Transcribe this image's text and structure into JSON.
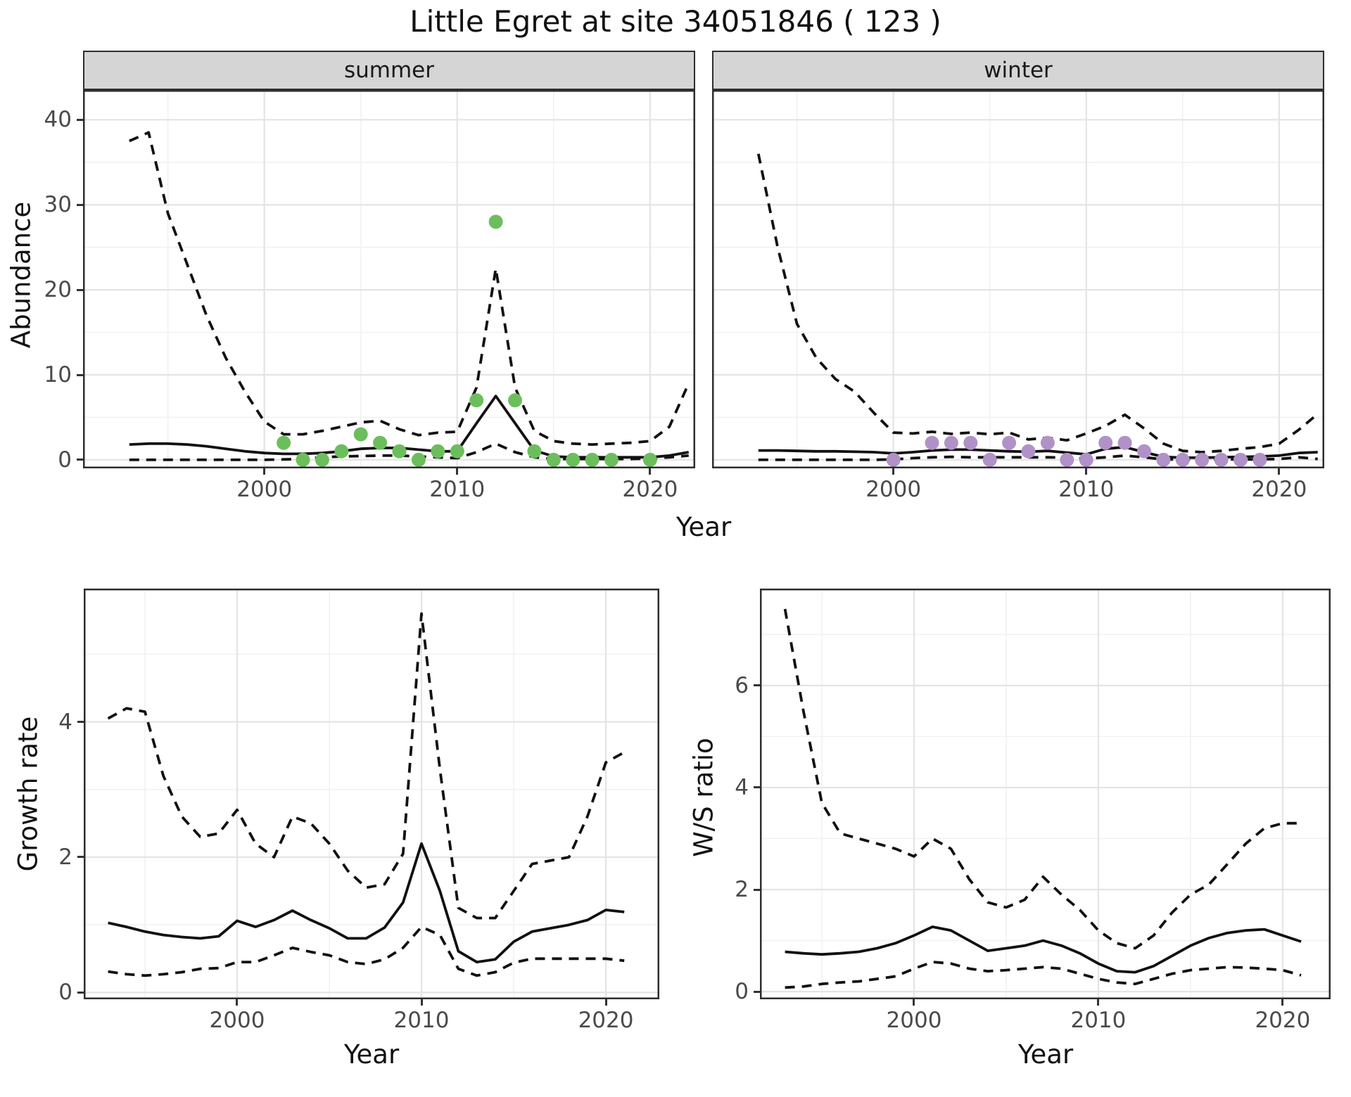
{
  "title": "Little Egret at site 34051846 ( 123 )",
  "axes": {
    "abundance_ylabel": "Abundance",
    "growth_ylabel": "Growth rate",
    "ws_ylabel": "W/S ratio",
    "year_xlabel": "Year"
  },
  "facets": {
    "summer": "summer",
    "winter": "winter"
  },
  "colors": {
    "summer_points": "#6CBE5C",
    "winter_points": "#B192C8",
    "line": "#111111",
    "strip_bg": "#D5D5D5",
    "grid_major": "#E4E4E4",
    "grid_minor": "#F1F1F1",
    "panel_border": "#2E2E2E",
    "tick_text": "#4A4A4A"
  },
  "chart_data": [
    {
      "id": "abundance-summer",
      "type": "line",
      "title": "summer",
      "xlabel": "Year",
      "ylabel": "Abundance",
      "x_range": [
        1990.6,
        2022.34
      ],
      "y_range": [
        -1.0,
        43.5
      ],
      "x_ticks": [
        2000,
        2010,
        2020
      ],
      "x_minor": [
        1995,
        2005,
        2015
      ],
      "y_ticks": [
        0,
        10,
        20,
        30,
        40
      ],
      "y_minor": [
        5,
        15,
        25,
        35
      ],
      "show_y_labels": true,
      "years": [
        1993,
        1994,
        1995,
        1996,
        1997,
        1998,
        1999,
        2000,
        2001,
        2002,
        2003,
        2004,
        2005,
        2006,
        2007,
        2008,
        2009,
        2010,
        2011,
        2012,
        2013,
        2014,
        2015,
        2016,
        2017,
        2018,
        2019,
        2020,
        2021,
        2022
      ],
      "series": [
        {
          "name": "upper-ci",
          "style": "dashed",
          "values": [
            37.5,
            38.5,
            29,
            23,
            17,
            12,
            8,
            4.5,
            3,
            3,
            3.4,
            3.9,
            4.4,
            4.6,
            3.6,
            2.9,
            3.2,
            3.3,
            8.5,
            22.5,
            8.5,
            3.4,
            2.2,
            1.9,
            1.8,
            1.9,
            2,
            2.2,
            3.9,
            9
          ]
        },
        {
          "name": "fit",
          "style": "solid",
          "values": [
            1.8,
            1.9,
            1.9,
            1.8,
            1.6,
            1.3,
            1.0,
            0.8,
            0.7,
            0.7,
            0.8,
            1.0,
            1.3,
            1.4,
            1.4,
            1.2,
            1.0,
            1.0,
            4.3,
            7.5,
            4.3,
            1.1,
            0.4,
            0.3,
            0.3,
            0.3,
            0.3,
            0.3,
            0.5,
            0.9
          ]
        },
        {
          "name": "lower-ci",
          "style": "dashed",
          "values": [
            0,
            0,
            0,
            0,
            0,
            0,
            0,
            0,
            0.05,
            0.1,
            0.3,
            0.4,
            0.45,
            0.5,
            0.5,
            0.4,
            0.3,
            0.2,
            0.9,
            1.9,
            0.9,
            0.3,
            0.1,
            0.1,
            0.1,
            0.1,
            0.1,
            0.15,
            0.3,
            0.5
          ]
        }
      ],
      "points": {
        "name": "summer-counts",
        "color": "#6CBE5C",
        "years": [
          2001,
          2002,
          2003,
          2004,
          2005,
          2006,
          2007,
          2008,
          2009,
          2010,
          2011,
          2012,
          2013,
          2014,
          2015,
          2016,
          2017,
          2018,
          2020
        ],
        "values": [
          2,
          0,
          0,
          1,
          3,
          2,
          1,
          0,
          1,
          1,
          7,
          28,
          7,
          1,
          0,
          0,
          0,
          0,
          0
        ]
      }
    },
    {
      "id": "abundance-winter",
      "type": "line",
      "title": "winter",
      "xlabel": "Year",
      "ylabel": "Abundance",
      "x_range": [
        1990.6,
        2022.34
      ],
      "y_range": [
        -1.0,
        43.5
      ],
      "x_ticks": [
        2000,
        2010,
        2020
      ],
      "x_minor": [
        1995,
        2005,
        2015
      ],
      "y_ticks": [
        0,
        10,
        20,
        30,
        40
      ],
      "y_minor": [
        5,
        15,
        25,
        35
      ],
      "show_y_labels": false,
      "years": [
        1993,
        1994,
        1995,
        1996,
        1997,
        1998,
        1999,
        2000,
        2001,
        2002,
        2003,
        2004,
        2005,
        2006,
        2007,
        2008,
        2009,
        2010,
        2011,
        2012,
        2013,
        2014,
        2015,
        2016,
        2017,
        2018,
        2019,
        2020,
        2021,
        2022
      ],
      "series": [
        {
          "name": "upper-ci",
          "style": "dashed",
          "values": [
            36,
            25,
            16,
            12,
            9.5,
            8,
            5.5,
            3.2,
            3.1,
            3.3,
            3.05,
            3.2,
            3.0,
            3.2,
            2.4,
            2.6,
            2.3,
            3.1,
            4.0,
            5.3,
            3.7,
            1.9,
            1.05,
            0.9,
            1.05,
            1.3,
            1.5,
            1.9,
            3.5,
            5.4
          ]
        },
        {
          "name": "fit",
          "style": "solid",
          "values": [
            1.1,
            1.1,
            1.05,
            1.0,
            1.0,
            0.95,
            0.9,
            0.75,
            0.9,
            1.1,
            1.2,
            1.2,
            1.1,
            1.0,
            0.95,
            1.05,
            0.85,
            0.65,
            1.3,
            1.5,
            0.9,
            0.35,
            0.25,
            0.25,
            0.3,
            0.35,
            0.4,
            0.5,
            0.8,
            0.9
          ]
        },
        {
          "name": "lower-ci",
          "style": "dashed",
          "values": [
            0,
            0,
            0,
            0,
            0,
            0,
            0,
            0.05,
            0.2,
            0.3,
            0.35,
            0.3,
            0.3,
            0.3,
            0.3,
            0.3,
            0.25,
            0.15,
            0.3,
            0.5,
            0.3,
            0.05,
            0.05,
            0.05,
            0.05,
            0.05,
            0.05,
            0.1,
            0.3,
            0.1
          ]
        }
      ],
      "points": {
        "name": "winter-counts",
        "color": "#B192C8",
        "years": [
          2000,
          2002,
          2003,
          2004,
          2005,
          2006,
          2007,
          2008,
          2009,
          2010,
          2011,
          2012,
          2013,
          2014,
          2015,
          2016,
          2017,
          2018,
          2019
        ],
        "values": [
          0,
          2,
          2,
          2,
          0,
          2,
          1,
          2,
          0,
          0,
          2,
          2,
          1,
          0,
          0,
          0,
          0,
          0,
          0
        ]
      }
    },
    {
      "id": "growth-rate",
      "type": "line",
      "title": "",
      "xlabel": "Year",
      "ylabel": "Growth rate",
      "x_range": [
        1991.68,
        2022.9
      ],
      "y_range": [
        -0.1,
        5.97
      ],
      "x_ticks": [
        2000,
        2010,
        2020
      ],
      "x_minor": [
        1995,
        2005,
        2015
      ],
      "y_ticks": [
        0,
        2,
        4
      ],
      "y_minor": [
        1,
        3,
        5
      ],
      "show_y_labels": true,
      "years": [
        1993,
        1994,
        1995,
        1996,
        1997,
        1998,
        1999,
        2000,
        2001,
        2002,
        2003,
        2004,
        2005,
        2006,
        2007,
        2008,
        2009,
        2010,
        2011,
        2012,
        2013,
        2014,
        2015,
        2016,
        2017,
        2018,
        2019,
        2020,
        2021
      ],
      "series": [
        {
          "name": "upper-ci",
          "style": "dashed",
          "values": [
            4.05,
            4.2,
            4.15,
            3.2,
            2.6,
            2.3,
            2.35,
            2.7,
            2.2,
            2.0,
            2.6,
            2.5,
            2.2,
            1.8,
            1.55,
            1.6,
            2.05,
            5.6,
            3.3,
            1.25,
            1.1,
            1.1,
            1.5,
            1.9,
            1.95,
            2.0,
            2.6,
            3.4,
            3.55
          ]
        },
        {
          "name": "fit",
          "style": "solid",
          "values": [
            1.03,
            0.97,
            0.9,
            0.85,
            0.82,
            0.8,
            0.83,
            1.06,
            0.97,
            1.07,
            1.21,
            1.07,
            0.95,
            0.8,
            0.8,
            0.96,
            1.33,
            2.2,
            1.5,
            0.61,
            0.45,
            0.49,
            0.75,
            0.9,
            0.95,
            1.0,
            1.07,
            1.22,
            1.19
          ]
        },
        {
          "name": "lower-ci",
          "style": "dashed",
          "values": [
            0.31,
            0.27,
            0.25,
            0.27,
            0.3,
            0.35,
            0.36,
            0.45,
            0.45,
            0.55,
            0.66,
            0.6,
            0.55,
            0.45,
            0.42,
            0.49,
            0.66,
            0.97,
            0.85,
            0.35,
            0.25,
            0.3,
            0.44,
            0.5,
            0.5,
            0.5,
            0.5,
            0.5,
            0.47
          ]
        }
      ],
      "points": null
    },
    {
      "id": "ws-ratio",
      "type": "line",
      "title": "",
      "xlabel": "Year",
      "ylabel": "W/S ratio",
      "x_range": [
        1991.64,
        2022.6
      ],
      "y_range": [
        -0.15,
        7.9
      ],
      "x_ticks": [
        2000,
        2010,
        2020
      ],
      "x_minor": [
        1995,
        2005,
        2015
      ],
      "y_ticks": [
        0,
        2,
        4,
        6
      ],
      "y_minor": [
        1,
        3,
        5,
        7
      ],
      "show_y_labels": true,
      "years": [
        1993,
        1994,
        1995,
        1996,
        1997,
        1998,
        1999,
        2000,
        2001,
        2002,
        2003,
        2004,
        2005,
        2006,
        2007,
        2008,
        2009,
        2010,
        2011,
        2012,
        2013,
        2014,
        2015,
        2016,
        2017,
        2018,
        2019,
        2020,
        2021
      ],
      "series": [
        {
          "name": "upper-ci",
          "style": "dashed",
          "values": [
            7.5,
            5.5,
            3.7,
            3.1,
            3.0,
            2.9,
            2.8,
            2.65,
            3.0,
            2.8,
            2.2,
            1.75,
            1.65,
            1.8,
            2.25,
            1.9,
            1.6,
            1.2,
            0.95,
            0.85,
            1.1,
            1.55,
            1.9,
            2.1,
            2.5,
            2.9,
            3.2,
            3.3,
            3.3
          ]
        },
        {
          "name": "fit",
          "style": "solid",
          "values": [
            0.78,
            0.75,
            0.73,
            0.75,
            0.78,
            0.85,
            0.95,
            1.1,
            1.27,
            1.2,
            1.0,
            0.8,
            0.85,
            0.9,
            1.0,
            0.9,
            0.75,
            0.55,
            0.4,
            0.38,
            0.5,
            0.7,
            0.9,
            1.05,
            1.15,
            1.2,
            1.22,
            1.1,
            0.98
          ]
        },
        {
          "name": "lower-ci",
          "style": "dashed",
          "values": [
            0.08,
            0.1,
            0.15,
            0.18,
            0.2,
            0.25,
            0.3,
            0.45,
            0.58,
            0.55,
            0.45,
            0.4,
            0.42,
            0.45,
            0.48,
            0.45,
            0.35,
            0.25,
            0.18,
            0.15,
            0.25,
            0.35,
            0.42,
            0.45,
            0.48,
            0.47,
            0.45,
            0.42,
            0.32
          ]
        }
      ],
      "points": null
    }
  ]
}
